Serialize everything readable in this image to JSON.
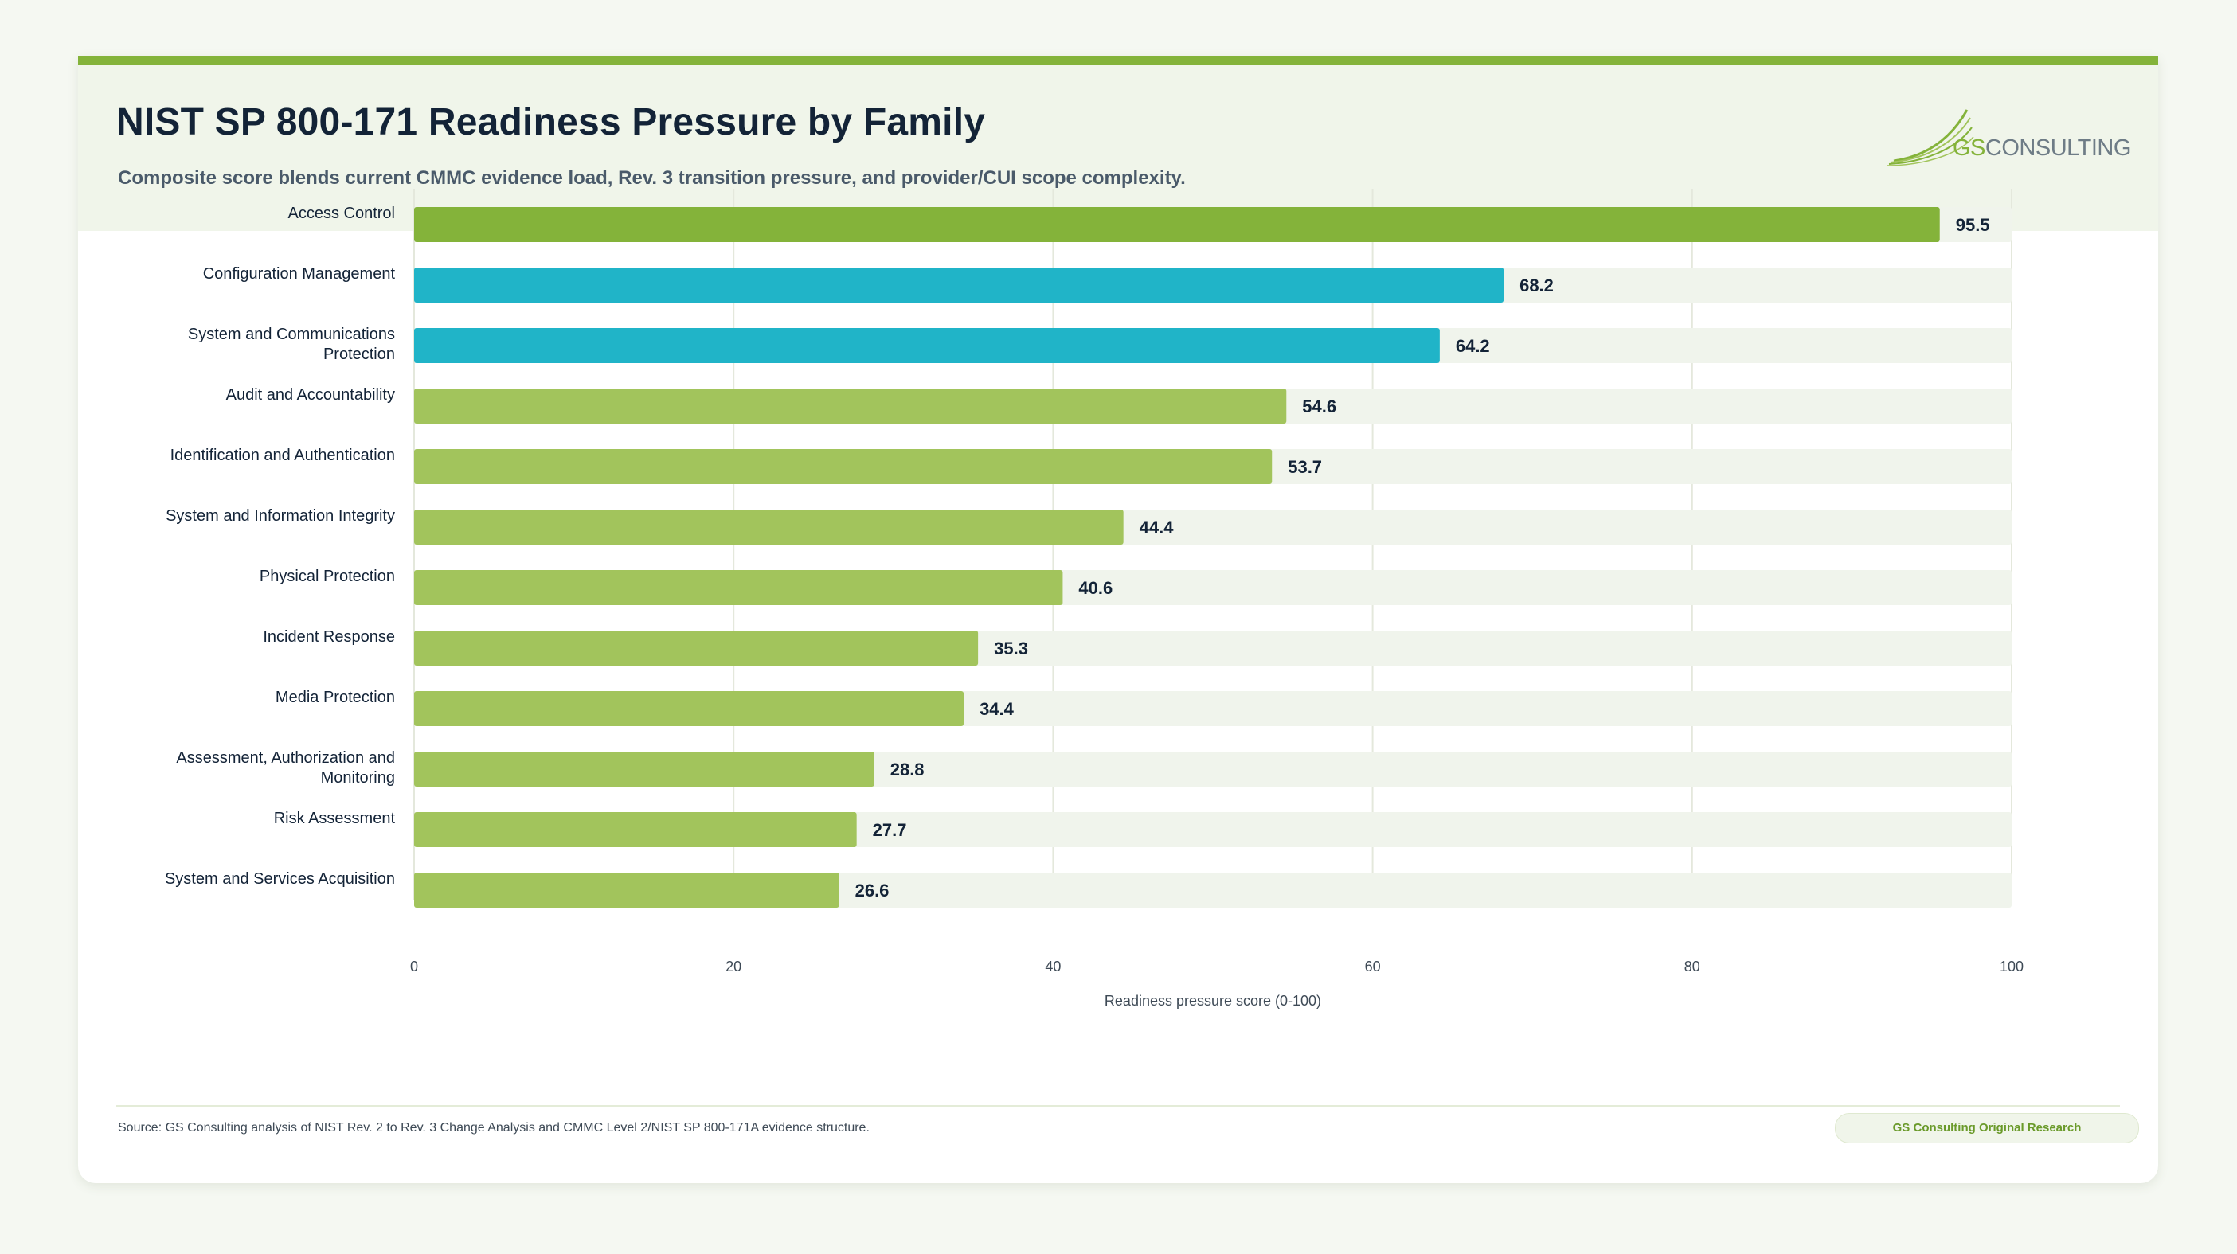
{
  "title": "NIST SP 800-171 Readiness Pressure by Family",
  "subtitle": "Composite score blends current CMMC evidence load, Rev. 3 transition pressure, and provider/CUI scope complexity.",
  "logo": {
    "prefix": "GS",
    "suffix": "CONSULTING"
  },
  "footer": {
    "source": "Source: GS Consulting analysis of NIST Rev. 2 to Rev. 3 Change Analysis and CMMC Level 2/NIST SP 800-171A evidence structure.",
    "badge": "GS Consulting Original Research"
  },
  "colors": {
    "accent": "#84b33a",
    "top_bar": "#84b33a",
    "highlight": "#20b4c8",
    "default_bar": "#a2c45c",
    "track": "#f0f4ec",
    "grid": "#e4e8dc"
  },
  "chart_data": {
    "type": "bar",
    "orientation": "horizontal",
    "categories": [
      [
        "Access Control"
      ],
      [
        "Configuration Management"
      ],
      [
        "System and Communications",
        "Protection"
      ],
      [
        "Audit and Accountability"
      ],
      [
        "Identification and Authentication"
      ],
      [
        "System and Information Integrity"
      ],
      [
        "Physical Protection"
      ],
      [
        "Incident Response"
      ],
      [
        "Media Protection"
      ],
      [
        "Assessment, Authorization and",
        "Monitoring"
      ],
      [
        "Risk Assessment"
      ],
      [
        "System and Services Acquisition"
      ]
    ],
    "values": [
      95.5,
      68.2,
      64.2,
      54.6,
      53.7,
      44.4,
      40.6,
      35.3,
      34.4,
      28.8,
      27.7,
      26.6
    ],
    "value_labels": [
      "95.5",
      "68.2",
      "64.2",
      "54.6",
      "53.7",
      "44.4",
      "40.6",
      "35.3",
      "34.4",
      "28.8",
      "27.7",
      "26.6"
    ],
    "bar_colors": [
      "#84b33a",
      "#20b4c8",
      "#20b4c8",
      "#a2c45c",
      "#a2c45c",
      "#a2c45c",
      "#a2c45c",
      "#a2c45c",
      "#a2c45c",
      "#a2c45c",
      "#a2c45c",
      "#a2c45c"
    ],
    "xlabel": "Readiness pressure score (0-100)",
    "ylabel": "",
    "xlim": [
      0,
      100
    ],
    "xticks": [
      0,
      20,
      40,
      60,
      80,
      100
    ],
    "grid": true,
    "legend": "none"
  }
}
